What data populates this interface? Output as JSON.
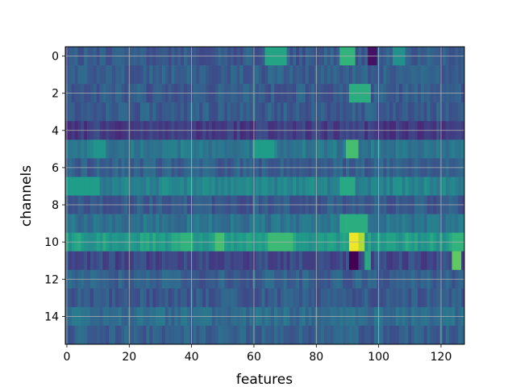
{
  "chart_data": {
    "type": "heatmap",
    "title": "",
    "xlabel": "features",
    "ylabel": "channels",
    "colormap": "viridis",
    "grid": true,
    "grid_color": "#b0b0b0",
    "n_channels": 16,
    "n_features": 128,
    "xlim": [
      -0.5,
      127.5
    ],
    "ylim": [
      15.5,
      -0.5
    ],
    "xticks": [
      0,
      20,
      40,
      60,
      80,
      100,
      120
    ],
    "yticks": [
      0,
      2,
      4,
      6,
      8,
      10,
      12,
      14
    ],
    "xtick_labels": [
      "0",
      "20",
      "40",
      "60",
      "80",
      "100",
      "120"
    ],
    "ytick_labels": [
      "0",
      "2",
      "4",
      "6",
      "8",
      "10",
      "12",
      "14"
    ],
    "value_range": [
      0,
      1
    ],
    "row_base_values": [
      0.28,
      0.3,
      0.28,
      0.29,
      0.18,
      0.4,
      0.3,
      0.45,
      0.28,
      0.38,
      0.55,
      0.22,
      0.3,
      0.28,
      0.35,
      0.3
    ],
    "highlights": [
      {
        "channel": 0,
        "features": [
          64,
          70
        ],
        "value": 0.58
      },
      {
        "channel": 0,
        "features": [
          88,
          92
        ],
        "value": 0.65
      },
      {
        "channel": 0,
        "features": [
          97,
          99
        ],
        "value": 0.05
      },
      {
        "channel": 0,
        "features": [
          105,
          108
        ],
        "value": 0.5
      },
      {
        "channel": 2,
        "features": [
          91,
          97
        ],
        "value": 0.62
      },
      {
        "channel": 5,
        "features": [
          9,
          12
        ],
        "value": 0.52
      },
      {
        "channel": 5,
        "features": [
          60,
          66
        ],
        "value": 0.55
      },
      {
        "channel": 5,
        "features": [
          90,
          93
        ],
        "value": 0.7
      },
      {
        "channel": 7,
        "features": [
          0,
          10
        ],
        "value": 0.55
      },
      {
        "channel": 7,
        "features": [
          88,
          92
        ],
        "value": 0.6
      },
      {
        "channel": 9,
        "features": [
          88,
          96
        ],
        "value": 0.62
      },
      {
        "channel": 10,
        "features": [
          37,
          40
        ],
        "value": 0.65
      },
      {
        "channel": 10,
        "features": [
          48,
          50
        ],
        "value": 0.7
      },
      {
        "channel": 10,
        "features": [
          65,
          72
        ],
        "value": 0.68
      },
      {
        "channel": 10,
        "features": [
          91,
          93
        ],
        "value": 0.98
      },
      {
        "channel": 10,
        "features": [
          94,
          95
        ],
        "value": 0.88
      },
      {
        "channel": 10,
        "features": [
          124,
          127
        ],
        "value": 0.65
      },
      {
        "channel": 11,
        "features": [
          91,
          93
        ],
        "value": 0.0
      },
      {
        "channel": 11,
        "features": [
          124,
          126
        ],
        "value": 0.75
      },
      {
        "channel": 11,
        "features": [
          96,
          97
        ],
        "value": 0.6
      }
    ]
  }
}
